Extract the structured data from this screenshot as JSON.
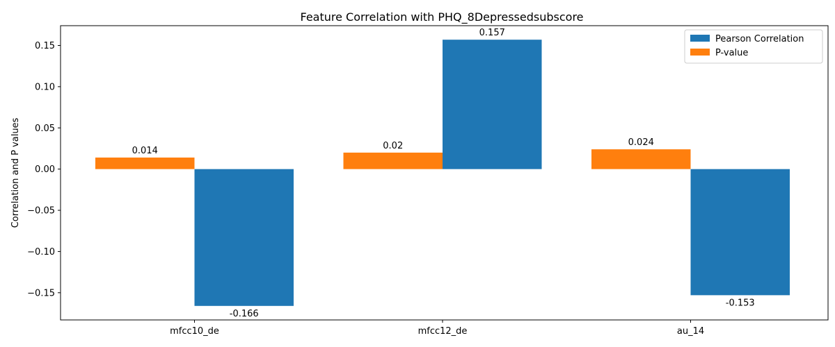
{
  "chart_data": {
    "type": "bar",
    "title": "Feature Correlation with PHQ_8Depressedsubscore",
    "xlabel": "",
    "ylabel": "Correlation and P values",
    "categories": [
      "mfcc10_de",
      "mfcc12_de",
      "au_14"
    ],
    "series": [
      {
        "name": "P-value",
        "values": [
          0.014,
          0.02,
          0.024
        ],
        "labels": [
          "0.014",
          "0.02",
          "0.024"
        ],
        "color": "#ff7f0e"
      },
      {
        "name": "Pearson Correlation",
        "values": [
          -0.166,
          0.157,
          -0.153
        ],
        "labels": [
          "-0.166",
          "0.157",
          "-0.153"
        ],
        "color": "#1f77b4"
      }
    ],
    "legend_order": [
      "Pearson Correlation",
      "P-value"
    ],
    "ylim": [
      -0.183,
      0.174
    ],
    "yticks": [
      -0.15,
      -0.1,
      -0.05,
      0.0,
      0.05,
      0.1,
      0.15
    ],
    "ytick_labels": [
      "−0.15",
      "−0.10",
      "−0.05",
      "0.00",
      "0.05",
      "0.10",
      "0.15"
    ],
    "grid": false,
    "legend_position": "top-right"
  }
}
